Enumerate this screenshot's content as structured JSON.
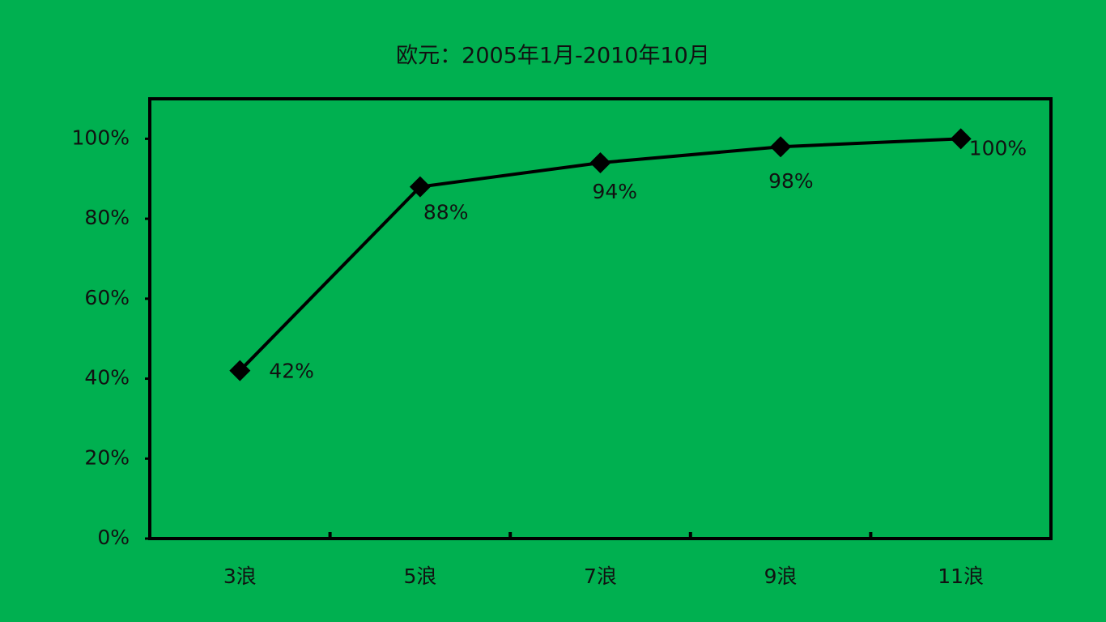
{
  "chart_data": {
    "type": "line",
    "title": "欧元：2005年1月-2010年10月",
    "categories": [
      "3浪",
      "5浪",
      "7浪",
      "9浪",
      "11浪"
    ],
    "values": [
      42,
      88,
      94,
      98,
      100
    ],
    "value_labels": [
      "42%",
      "88%",
      "94%",
      "98%",
      "100%"
    ],
    "color": "#000000",
    "ylim": [
      0,
      110
    ],
    "yticks": [
      {
        "value": 0,
        "label": "0%"
      },
      {
        "value": 20,
        "label": "20%"
      },
      {
        "value": 40,
        "label": "40%"
      },
      {
        "value": 60,
        "label": "60%"
      },
      {
        "value": 80,
        "label": "80%"
      },
      {
        "value": 100,
        "label": "100%"
      }
    ],
    "grid": false
  }
}
